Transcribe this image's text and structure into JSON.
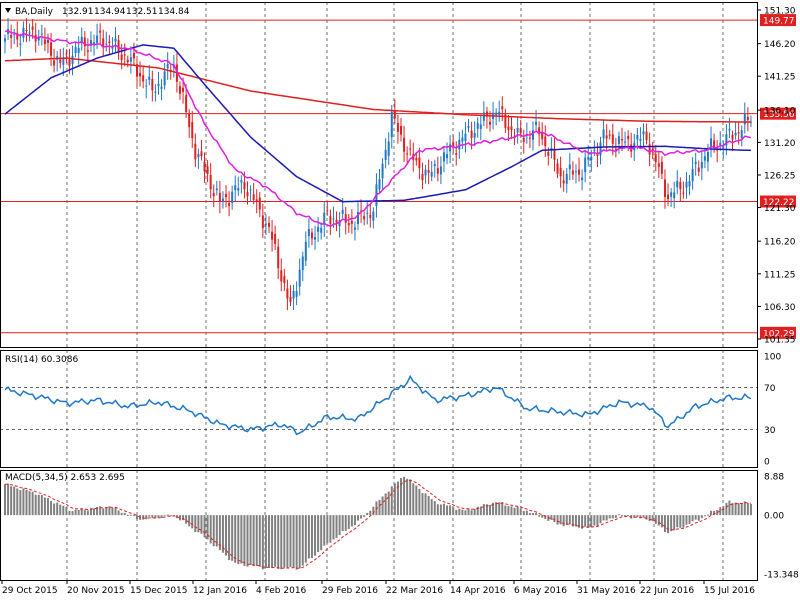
{
  "chart_data": [
    {
      "type": "candlestick",
      "title": "BA,Daily",
      "ohlc_readout": [
        "132.91",
        "134.94",
        "132.51",
        "134.84"
      ],
      "price_axis": {
        "ylim": [
          101.35,
          151.3
        ],
        "ticks": [
          "151.30",
          "146.20",
          "141.25",
          "136.10",
          "131.20",
          "126.25",
          "121.30",
          "116.20",
          "111.25",
          "106.30",
          "101.35"
        ]
      },
      "horizontal_levels": [
        {
          "value": 149.77,
          "label": "149.77"
        },
        {
          "value": 135.56,
          "label": "135.56"
        },
        {
          "value": 122.22,
          "label": "122.22"
        },
        {
          "value": 102.29,
          "label": "102.29"
        }
      ],
      "up_color": "#1f78c8",
      "down_color": "#e02020",
      "moving_average_colors": {
        "ma_long": "#e02020",
        "ma_mid": "#1a1ab4",
        "ma_short": "#e020e0"
      },
      "ma_long_anchors": [
        [
          0,
          143.6
        ],
        [
          20,
          144.0
        ],
        [
          50,
          142.5
        ],
        [
          80,
          139.0
        ],
        [
          120,
          136.2
        ],
        [
          150,
          135.4
        ],
        [
          180,
          134.8
        ],
        [
          210,
          134.4
        ],
        [
          240,
          134.3
        ]
      ],
      "ma_mid_anchors": [
        [
          0,
          135.5
        ],
        [
          15,
          141.0
        ],
        [
          30,
          144.0
        ],
        [
          45,
          146.0
        ],
        [
          55,
          145.5
        ],
        [
          65,
          140.0
        ],
        [
          80,
          132.0
        ],
        [
          95,
          126.0
        ],
        [
          110,
          122.2
        ],
        [
          130,
          122.4
        ],
        [
          150,
          124.0
        ],
        [
          165,
          127.5
        ],
        [
          175,
          130.0
        ],
        [
          195,
          130.5
        ],
        [
          215,
          130.6
        ],
        [
          230,
          130.2
        ],
        [
          242,
          130.0
        ]
      ],
      "ma_short_anchors": [
        [
          0,
          148.0
        ],
        [
          20,
          146.5
        ],
        [
          40,
          145.5
        ],
        [
          55,
          143.0
        ],
        [
          65,
          134.0
        ],
        [
          75,
          127.0
        ],
        [
          85,
          124.5
        ],
        [
          95,
          120.5
        ],
        [
          105,
          118.5
        ],
        [
          115,
          120.0
        ],
        [
          125,
          125.0
        ],
        [
          135,
          130.0
        ],
        [
          145,
          130.5
        ],
        [
          160,
          131.5
        ],
        [
          175,
          132.8
        ],
        [
          190,
          129.5
        ],
        [
          205,
          130.5
        ],
        [
          215,
          129.5
        ],
        [
          228,
          130.0
        ],
        [
          242,
          132.0
        ]
      ],
      "close_anchors": [
        [
          0,
          147
        ],
        [
          10,
          148
        ],
        [
          18,
          143
        ],
        [
          25,
          146
        ],
        [
          32,
          147
        ],
        [
          40,
          144
        ],
        [
          48,
          139
        ],
        [
          55,
          143
        ],
        [
          62,
          130
        ],
        [
          70,
          122
        ],
        [
          78,
          125
        ],
        [
          86,
          118
        ],
        [
          93,
          106
        ],
        [
          98,
          116
        ],
        [
          105,
          120
        ],
        [
          113,
          119
        ],
        [
          120,
          121
        ],
        [
          126,
          135
        ],
        [
          132,
          129
        ],
        [
          138,
          126
        ],
        [
          145,
          130
        ],
        [
          152,
          133
        ],
        [
          160,
          136
        ],
        [
          167,
          132
        ],
        [
          174,
          133
        ],
        [
          181,
          126
        ],
        [
          188,
          127
        ],
        [
          195,
          132
        ],
        [
          202,
          131
        ],
        [
          209,
          132
        ],
        [
          216,
          123
        ],
        [
          222,
          125
        ],
        [
          229,
          130
        ],
        [
          236,
          132
        ],
        [
          243,
          134.8
        ]
      ],
      "x_tick_labels": [
        "29 Oct 2015",
        "20 Nov 2015",
        "15 Dec 2015",
        "12 Jan 2016",
        "4 Feb 2016",
        "29 Feb 2016",
        "22 Mar 2016",
        "14 Apr 2016",
        "6 May 2016",
        "31 May 2016",
        "22 Jun 2016",
        "15 Jul 2016"
      ]
    },
    {
      "type": "line",
      "title": "RSI(14) 60.3086",
      "ylim": [
        0,
        100
      ],
      "ticks": [
        "100",
        "70",
        "30",
        "0"
      ],
      "levels": [
        70,
        30
      ],
      "line_color": "#1f78c8",
      "anchors": [
        [
          0,
          68
        ],
        [
          10,
          62
        ],
        [
          20,
          55
        ],
        [
          30,
          58
        ],
        [
          40,
          52
        ],
        [
          50,
          56
        ],
        [
          60,
          48
        ],
        [
          70,
          35
        ],
        [
          80,
          30
        ],
        [
          90,
          35
        ],
        [
          96,
          27
        ],
        [
          105,
          42
        ],
        [
          115,
          40
        ],
        [
          125,
          62
        ],
        [
          132,
          78
        ],
        [
          140,
          58
        ],
        [
          150,
          62
        ],
        [
          160,
          70
        ],
        [
          170,
          50
        ],
        [
          180,
          47
        ],
        [
          190,
          44
        ],
        [
          200,
          56
        ],
        [
          210,
          52
        ],
        [
          216,
          33
        ],
        [
          225,
          52
        ],
        [
          235,
          60
        ],
        [
          243,
          60.3
        ]
      ]
    },
    {
      "type": "bar",
      "title": "MACD(5,34,5) 2.653 2.695",
      "ylim": [
        -13.348,
        8.88
      ],
      "ticks": [
        "8.88",
        "0.00",
        "-13.348"
      ],
      "histogram_color": "#808080",
      "signal_color": "#e02020",
      "anchors": [
        [
          0,
          7
        ],
        [
          10,
          5
        ],
        [
          22,
          1
        ],
        [
          34,
          2
        ],
        [
          44,
          -1
        ],
        [
          55,
          0
        ],
        [
          65,
          -5
        ],
        [
          75,
          -11
        ],
        [
          85,
          -12
        ],
        [
          96,
          -12
        ],
        [
          106,
          -6
        ],
        [
          116,
          -1
        ],
        [
          124,
          5
        ],
        [
          130,
          9
        ],
        [
          140,
          3
        ],
        [
          150,
          1
        ],
        [
          160,
          3
        ],
        [
          170,
          1
        ],
        [
          180,
          -2
        ],
        [
          190,
          -3
        ],
        [
          200,
          0
        ],
        [
          210,
          -1
        ],
        [
          216,
          -4
        ],
        [
          226,
          -1
        ],
        [
          236,
          3
        ],
        [
          243,
          2.65
        ]
      ]
    }
  ]
}
